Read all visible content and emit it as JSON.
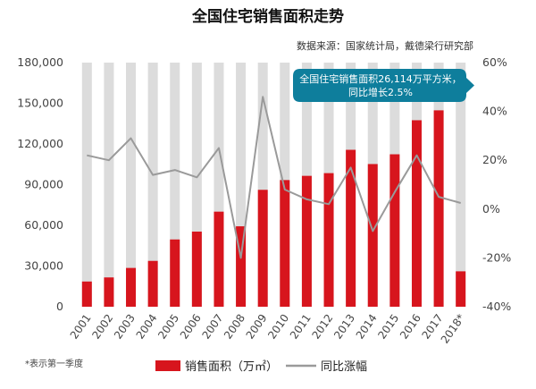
{
  "title": "全国住宅销售面积走势",
  "source": "数据来源：国家统计局，戴德梁行研究部",
  "footnote": "*表示第一季度",
  "callout": {
    "line1": "全国住宅销售面积26,114万平方米，",
    "line2": "同比增长2.5%"
  },
  "colors": {
    "bar": "#d7151d",
    "background_bar": "#dcdcdc",
    "line": "#9a9a9a",
    "callout": "#0e7e9c"
  },
  "chart_data": {
    "type": "bar",
    "categories": [
      "2001",
      "2002",
      "2003",
      "2004",
      "2005",
      "2006",
      "2007",
      "2008",
      "2009",
      "2010",
      "2011",
      "2012",
      "2013",
      "2014",
      "2015",
      "2016",
      "2017",
      "2018*"
    ],
    "series": [
      {
        "name": "销售面积（万㎡）",
        "type": "bar",
        "axis": "left",
        "values": [
          18600,
          21600,
          28600,
          33800,
          49600,
          55400,
          70100,
          59300,
          86200,
          93400,
          96500,
          98500,
          115700,
          105200,
          112400,
          137500,
          144800,
          26114
        ]
      },
      {
        "name": "同比涨幅",
        "type": "line",
        "axis": "right",
        "values": [
          22,
          20,
          29,
          14,
          16,
          13,
          25,
          -20,
          46,
          8,
          4,
          2,
          17,
          -9,
          7,
          22,
          5,
          2.5
        ]
      }
    ],
    "y_left": {
      "ticks": [
        "0",
        "30,000",
        "60,000",
        "90,000",
        "120,000",
        "150,000",
        "180,000"
      ],
      "range": [
        0,
        180000
      ]
    },
    "y_right": {
      "ticks": [
        "-40%",
        "-20%",
        "0%",
        "20%",
        "40%",
        "60%"
      ],
      "range": [
        -40,
        60
      ]
    },
    "legend_position": "bottom",
    "grid": false
  }
}
